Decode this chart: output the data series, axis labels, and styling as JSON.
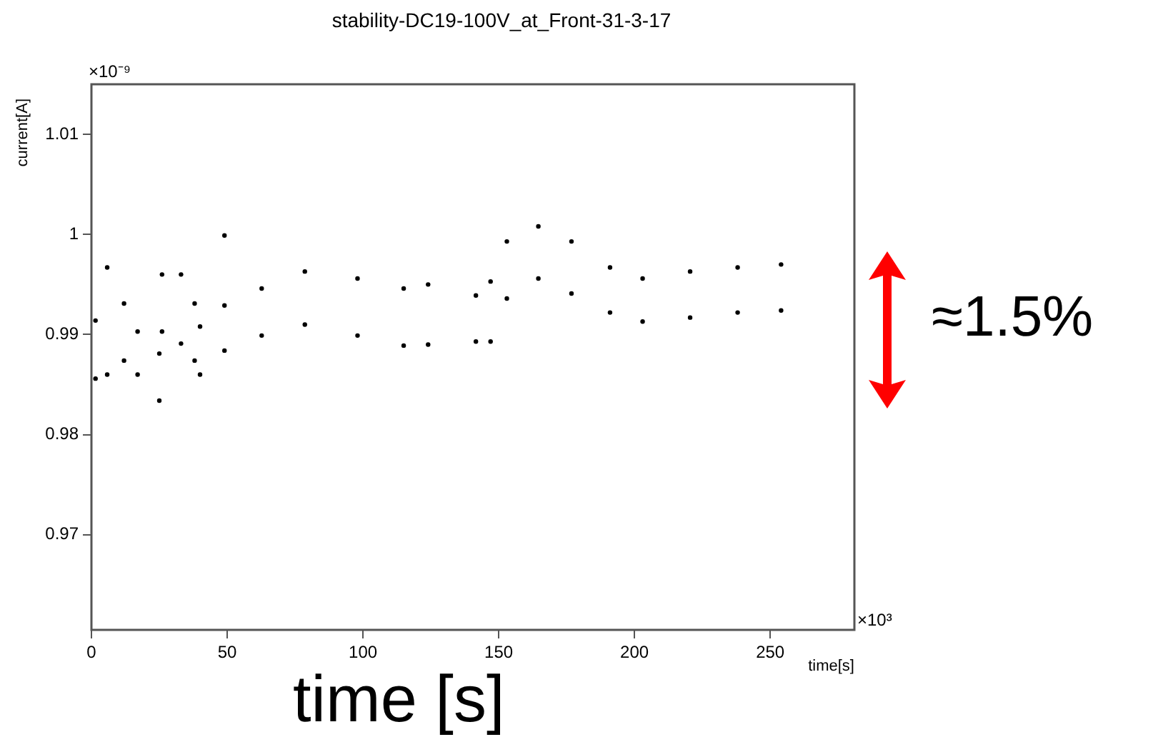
{
  "chart_data": {
    "type": "scatter",
    "title": "stability-DC19-100V_at_Front-31-3-17",
    "xlabel": "time[s]",
    "ylabel": "current[A]",
    "annotations": [
      "×10⁻⁹",
      "×10³",
      "time [s]",
      "≈1.5%"
    ],
    "xlim": [
      0,
      281
    ],
    "xticks": [
      0,
      50,
      100,
      150,
      200,
      250
    ],
    "ylim": [
      0.9605,
      1.015
    ],
    "yticks": [
      0.97,
      0.98,
      0.99,
      1,
      1.01
    ],
    "grid": false,
    "legend": false,
    "marker": "circle",
    "series": [
      {
        "color": "#000000",
        "x": [
          1.5,
          1.5,
          5.8,
          5.8,
          12,
          12,
          17,
          17,
          25,
          25,
          26,
          26,
          33,
          33,
          38,
          38,
          40,
          40,
          49,
          49,
          49,
          62.7,
          62.7,
          78.6,
          78.6,
          98,
          98,
          115,
          115,
          124,
          124,
          141.6,
          141.6,
          147,
          147,
          153,
          153,
          164.6,
          164.6,
          176.8,
          176.8,
          191,
          191,
          203,
          203,
          220.5,
          220.5,
          238,
          238,
          254,
          254
        ],
        "values": [
          0.9914,
          0.9856,
          0.9967,
          0.986,
          0.9931,
          0.9874,
          0.9903,
          0.986,
          0.9881,
          0.9834,
          0.996,
          0.9903,
          0.996,
          0.9891,
          0.9931,
          0.9874,
          0.9908,
          0.986,
          0.9999,
          0.9929,
          0.9884,
          0.9946,
          0.9899,
          0.9963,
          0.991,
          0.9956,
          0.9899,
          0.9946,
          0.9889,
          0.995,
          0.989,
          0.9939,
          0.9893,
          0.9953,
          0.9893,
          0.9993,
          0.9936,
          1.0008,
          0.9956,
          0.9993,
          0.9941,
          0.9967,
          0.9922,
          0.9956,
          0.9913,
          0.9963,
          0.9917,
          0.9967,
          0.9922,
          0.997,
          0.9924
        ]
      }
    ]
  }
}
